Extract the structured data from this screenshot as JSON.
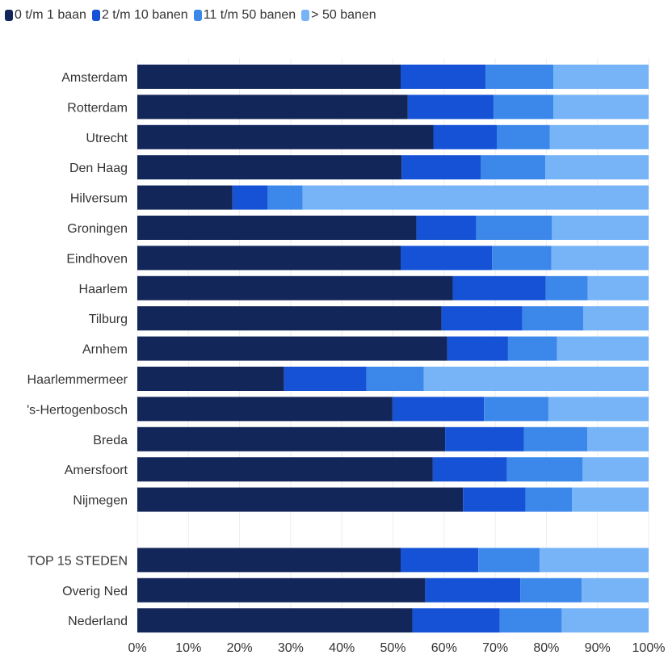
{
  "chart_data": {
    "type": "bar",
    "orientation": "horizontal",
    "stacked": true,
    "percent": true,
    "legend_position": "top-left",
    "grid": true,
    "categories": [
      "Amsterdam",
      "Rotterdam",
      "Utrecht",
      "Den Haag",
      "Hilversum",
      "Groningen",
      "Eindhoven",
      "Haarlem",
      "Tilburg",
      "Arnhem",
      "Haarlemmermeer",
      "'s-Hertogenbosch",
      "Breda",
      "Amersfoort",
      "Nijmegen",
      "",
      "TOP 15 STEDEN",
      "Overig Ned",
      "Nederland"
    ],
    "series": [
      {
        "name": "0 t/m 1 baan",
        "color": "#13265a",
        "values": [
          51.5,
          52.9,
          57.9,
          51.7,
          18.6,
          54.6,
          51.5,
          61.7,
          59.5,
          60.6,
          28.7,
          49.9,
          60.2,
          57.8,
          63.7,
          null,
          51.5,
          56.3,
          53.8
        ]
      },
      {
        "name": "2 t/m 10 banen",
        "color": "#1552d6",
        "values": [
          16.6,
          16.8,
          12.4,
          15.5,
          6.9,
          11.7,
          17.9,
          18.2,
          15.8,
          11.9,
          16.1,
          17.9,
          15.4,
          14.5,
          12.2,
          null,
          15.2,
          18.6,
          17.1
        ]
      },
      {
        "name": "11 t/m 50 banen",
        "color": "#3c88ea",
        "values": [
          13.3,
          11.7,
          10.4,
          12.6,
          6.8,
          14.8,
          11.6,
          8.2,
          11.9,
          9.6,
          11.2,
          12.6,
          12.4,
          14.8,
          9.1,
          null,
          12.0,
          12.0,
          12.1
        ]
      },
      {
        "name": "> 50 banen",
        "color": "#76b3f7",
        "values": [
          18.6,
          18.6,
          19.3,
          20.2,
          67.7,
          18.9,
          19.0,
          11.9,
          12.8,
          17.9,
          44.0,
          19.6,
          12.0,
          12.9,
          15.0,
          null,
          21.3,
          13.1,
          17.0
        ]
      }
    ],
    "x_ticks": [
      "0%",
      "10%",
      "20%",
      "30%",
      "40%",
      "50%",
      "60%",
      "70%",
      "80%",
      "90%",
      "100%"
    ],
    "xlim": [
      0,
      100
    ],
    "title": "",
    "xlabel": "",
    "ylabel": ""
  }
}
